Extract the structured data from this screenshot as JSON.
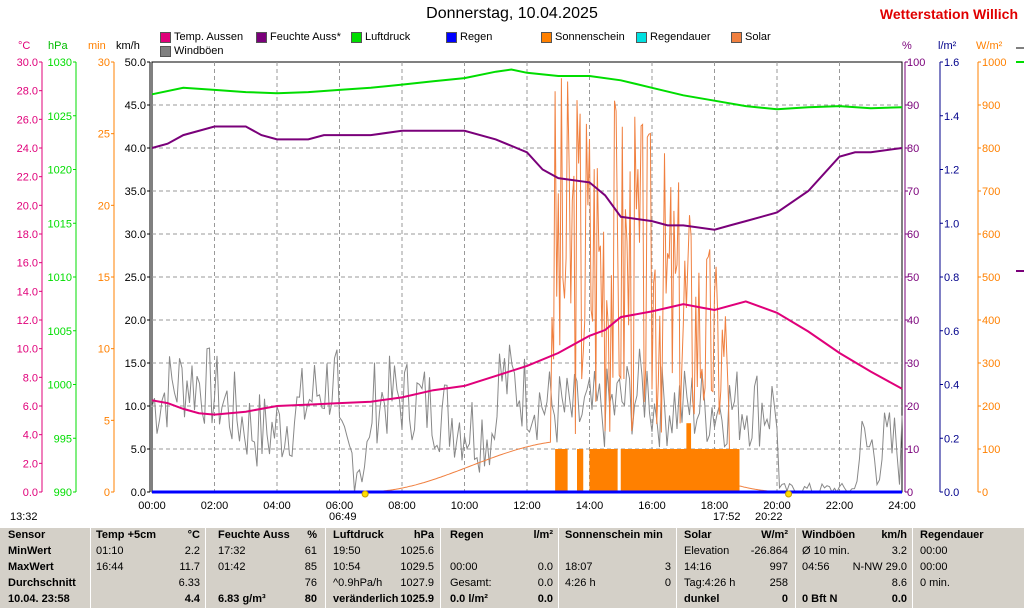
{
  "header": {
    "title": "Donnerstag, 10.04.2025",
    "station": "Wetterstation Willich"
  },
  "legend": [
    {
      "label": "Temp. Aussen",
      "color": "#e0007a"
    },
    {
      "label": "Feuchte Auss*",
      "color": "#7a007a"
    },
    {
      "label": "Luftdruck",
      "color": "#00dd00"
    },
    {
      "label": "Regen",
      "color": "#0000ff"
    },
    {
      "label": "Sonnenschein",
      "color": "#ff8000"
    },
    {
      "label": "Regendauer",
      "color": "#00e0e0"
    },
    {
      "label": "Solar",
      "color": "#f08040"
    },
    {
      "label": "Windböen",
      "color": "#808080"
    }
  ],
  "units": {
    "temp": "°C",
    "press": "hPa",
    "min": "min",
    "wind": "km/h",
    "hum": "%",
    "rain": "l/m²",
    "solar": "W/m²"
  },
  "markers": {
    "left_time": "13:32",
    "sunrise": "06:49",
    "sun_a": "17:52",
    "sunset": "20:22"
  },
  "chart_data": {
    "type": "line",
    "x_range": [
      "00:00",
      "24:00"
    ],
    "x_ticks": [
      "00:00",
      "02:00",
      "04:00",
      "06:00",
      "08:00",
      "10:00",
      "12:00",
      "14:00",
      "16:00",
      "18:00",
      "20:00",
      "22:00",
      "24:00"
    ],
    "axes": {
      "temp": {
        "unit": "°C",
        "range": [
          0,
          30
        ],
        "ticks": [
          "0.0",
          "2.0",
          "4.0",
          "6.0",
          "8.0",
          "10.0",
          "12.0",
          "14.0",
          "16.0",
          "18.0",
          "20.0",
          "22.0",
          "24.0",
          "26.0",
          "28.0",
          "30.0"
        ],
        "color": "#e0007a"
      },
      "press": {
        "unit": "hPa",
        "range": [
          990,
          1030
        ],
        "ticks": [
          "990",
          "995",
          "1000",
          "1005",
          "1010",
          "1015",
          "1020",
          "1025",
          "1030"
        ],
        "color": "#00dd00"
      },
      "min": {
        "unit": "min",
        "range": [
          0,
          30
        ],
        "ticks": [
          "0",
          "5",
          "10",
          "15",
          "20",
          "25",
          "30"
        ],
        "color": "#ff8000"
      },
      "wind": {
        "unit": "km/h",
        "range": [
          0,
          50
        ],
        "ticks": [
          "0.0",
          "5.0",
          "10.0",
          "15.0",
          "20.0",
          "25.0",
          "30.0",
          "35.0",
          "40.0",
          "45.0",
          "50.0"
        ],
        "color": "#000000"
      },
      "hum": {
        "unit": "%",
        "range": [
          0,
          100
        ],
        "ticks": [
          "0",
          "10",
          "20",
          "30",
          "40",
          "50",
          "60",
          "70",
          "80",
          "90",
          "100"
        ],
        "color": "#7a007a"
      },
      "rain": {
        "unit": "l/m²",
        "range": [
          0,
          1.6
        ],
        "ticks": [
          "0.0",
          "0.2",
          "0.4",
          "0.6",
          "0.8",
          "1.0",
          "1.2",
          "1.4",
          "1.6"
        ],
        "color": "#00008b"
      },
      "solar": {
        "unit": "W/m²",
        "range": [
          0,
          1000
        ],
        "ticks": [
          "0",
          "100",
          "200",
          "300",
          "400",
          "500",
          "600",
          "700",
          "800",
          "900",
          "1000"
        ],
        "color": "#ff8000"
      }
    },
    "series": [
      {
        "name": "Temp. Aussen",
        "axis": "temp",
        "color": "#e0007a",
        "points": [
          [
            0,
            6.4
          ],
          [
            0.5,
            6.2
          ],
          [
            1,
            5.8
          ],
          [
            1.5,
            5.5
          ],
          [
            2,
            5.4
          ],
          [
            3,
            5.6
          ],
          [
            4,
            6.0
          ],
          [
            5,
            6.1
          ],
          [
            6,
            6.2
          ],
          [
            7,
            6.3
          ],
          [
            8,
            6.6
          ],
          [
            9,
            7.1
          ],
          [
            10,
            7.4
          ],
          [
            11,
            8.1
          ],
          [
            12,
            8.8
          ],
          [
            13,
            9.7
          ],
          [
            13.5,
            10.3
          ],
          [
            14,
            10.9
          ],
          [
            14.5,
            11.3
          ],
          [
            15,
            12.2
          ],
          [
            16,
            12.6
          ],
          [
            17,
            13.1
          ],
          [
            17.5,
            12.9
          ],
          [
            18,
            12.7
          ],
          [
            19,
            13.3
          ],
          [
            20,
            12.5
          ],
          [
            21,
            11.2
          ],
          [
            22,
            9.7
          ],
          [
            23,
            8.4
          ],
          [
            24,
            7.2
          ]
        ]
      },
      {
        "name": "Feuchte Auss*",
        "axis": "hum",
        "color": "#7a007a",
        "points": [
          [
            0,
            80
          ],
          [
            0.5,
            81
          ],
          [
            1,
            83
          ],
          [
            2,
            85
          ],
          [
            3,
            85
          ],
          [
            3.5,
            83
          ],
          [
            4,
            82
          ],
          [
            5,
            82
          ],
          [
            5.5,
            83
          ],
          [
            6,
            83
          ],
          [
            7,
            83
          ],
          [
            8,
            84
          ],
          [
            9,
            84
          ],
          [
            10,
            84
          ],
          [
            11,
            82
          ],
          [
            12,
            79
          ],
          [
            12.5,
            75
          ],
          [
            13,
            73
          ],
          [
            14,
            72
          ],
          [
            14.5,
            69
          ],
          [
            15,
            64
          ],
          [
            16,
            63
          ],
          [
            16.5,
            62
          ],
          [
            17,
            62
          ],
          [
            18,
            61
          ],
          [
            18.5,
            62
          ],
          [
            19,
            63
          ],
          [
            20,
            65
          ],
          [
            21,
            70
          ],
          [
            21.5,
            74
          ],
          [
            22,
            78
          ],
          [
            22.5,
            79
          ],
          [
            23,
            79
          ],
          [
            24,
            80
          ]
        ]
      },
      {
        "name": "Luftdruck",
        "axis": "press",
        "color": "#00dd00",
        "points": [
          [
            0,
            1027.0
          ],
          [
            1,
            1027.6
          ],
          [
            2,
            1027.4
          ],
          [
            3,
            1027.2
          ],
          [
            4,
            1027.1
          ],
          [
            5,
            1027.2
          ],
          [
            6,
            1027.4
          ],
          [
            7,
            1027.6
          ],
          [
            8,
            1027.9
          ],
          [
            9,
            1028.2
          ],
          [
            10,
            1028.5
          ],
          [
            11,
            1029.1
          ],
          [
            11.5,
            1029.3
          ],
          [
            12,
            1029.0
          ],
          [
            13,
            1028.7
          ],
          [
            14,
            1028.7
          ],
          [
            15,
            1028.3
          ],
          [
            16,
            1027.6
          ],
          [
            17,
            1026.9
          ],
          [
            18,
            1026.4
          ],
          [
            19,
            1025.9
          ],
          [
            20,
            1025.6
          ],
          [
            21,
            1025.8
          ],
          [
            22,
            1025.9
          ],
          [
            23,
            1025.7
          ],
          [
            24,
            1025.8
          ]
        ]
      },
      {
        "name": "Regen",
        "axis": "rain",
        "color": "#0000ff",
        "points": [
          [
            0,
            0
          ],
          [
            24,
            0
          ]
        ]
      }
    ],
    "sunshine_blocks": {
      "axis": "min",
      "color": "#ff8000",
      "ranges": [
        [
          12.9,
          13.3,
          3
        ],
        [
          13.6,
          13.8,
          3
        ],
        [
          14.0,
          14.9,
          3
        ],
        [
          15.0,
          18.8,
          3
        ],
        [
          17.1,
          17.25,
          4.8
        ]
      ]
    },
    "table": {
      "rows": [
        [
          "Sensor",
          "Temp +5cm",
          "°C",
          "Feuchte Auss",
          "%",
          "Luftdruck",
          "hPa",
          "Regen",
          "l/m²",
          "Sonnenschein min",
          "",
          "Solar",
          "W/m²",
          "Windböen",
          "km/h",
          "Regendauer",
          ""
        ],
        [
          "MinWert",
          "01:10",
          "2.2",
          "17:32",
          "61",
          "19:50",
          "1025.6",
          "",
          "",
          "",
          "",
          "Elevation",
          "-26.864",
          "Ø 10 min.",
          "3.2",
          "00:00",
          ""
        ],
        [
          "MaxWert",
          "16:44",
          "11.7",
          "01:42",
          "85",
          "10:54",
          "1029.5",
          "00:00",
          "0.0",
          "18:07",
          "3",
          "14:16",
          "997",
          "04:56",
          "N-NW 29.0",
          "00:00",
          ""
        ],
        [
          "Durchschnitt",
          "",
          "6.33",
          "",
          "76",
          "^0.9hPa/h",
          "1027.9",
          "Gesamt:",
          "0.0",
          "4:26 h",
          "0",
          "Tag:4:26 h",
          "258",
          "",
          "8.6",
          "0 min.",
          ""
        ],
        [
          "10.04. 23:58",
          "",
          "4.4",
          "6.83 g/m³",
          "80",
          "veränderlich",
          "1025.9",
          "0.0 l/m²",
          "0.0",
          "",
          "",
          "dunkel",
          "0",
          "0 Bft N",
          "0.0",
          "",
          ""
        ]
      ]
    }
  }
}
